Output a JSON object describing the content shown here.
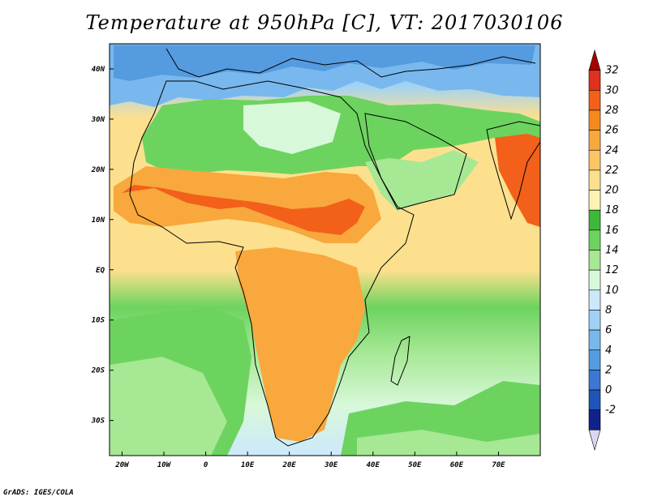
{
  "title": "Temperature at 950hPa [C], VT: 2017030106",
  "credit": "GrADS: IGES/COLA",
  "map": {
    "lon_range": [
      -23,
      80
    ],
    "lat_range": [
      -37,
      45
    ],
    "lon_ticks": [
      {
        "lon": -20,
        "label": "20W"
      },
      {
        "lon": -10,
        "label": "10W"
      },
      {
        "lon": 0,
        "label": "0"
      },
      {
        "lon": 10,
        "label": "10E"
      },
      {
        "lon": 20,
        "label": "20E"
      },
      {
        "lon": 30,
        "label": "30E"
      },
      {
        "lon": 40,
        "label": "40E"
      },
      {
        "lon": 50,
        "label": "50E"
      },
      {
        "lon": 60,
        "label": "60E"
      },
      {
        "lon": 70,
        "label": "70E"
      }
    ],
    "lat_ticks": [
      {
        "lat": 40,
        "label": "40N"
      },
      {
        "lat": 30,
        "label": "30N"
      },
      {
        "lat": 20,
        "label": "20N"
      },
      {
        "lat": 10,
        "label": "10N"
      },
      {
        "lat": 0,
        "label": "EQ"
      },
      {
        "lat": -10,
        "label": "10S"
      },
      {
        "lat": -20,
        "label": "20S"
      },
      {
        "lat": -30,
        "label": "30S"
      }
    ]
  },
  "colorbar": {
    "labels": [
      "32",
      "30",
      "28",
      "26",
      "24",
      "22",
      "20",
      "18",
      "16",
      "14",
      "12",
      "10",
      "8",
      "6",
      "4",
      "2",
      "0",
      "-2"
    ],
    "colors": [
      "#a50000",
      "#e0301e",
      "#f2601a",
      "#f5891e",
      "#f8a83c",
      "#fbc566",
      "#fde08e",
      "#fff2b4",
      "#3db83a",
      "#6dd35f",
      "#a6e894",
      "#d8f8da",
      "#cce9fb",
      "#a0d2f5",
      "#79b8ee",
      "#559bdf",
      "#3a78d4",
      "#1f55b8",
      "#10218c",
      "#dcd6f5"
    ]
  }
}
